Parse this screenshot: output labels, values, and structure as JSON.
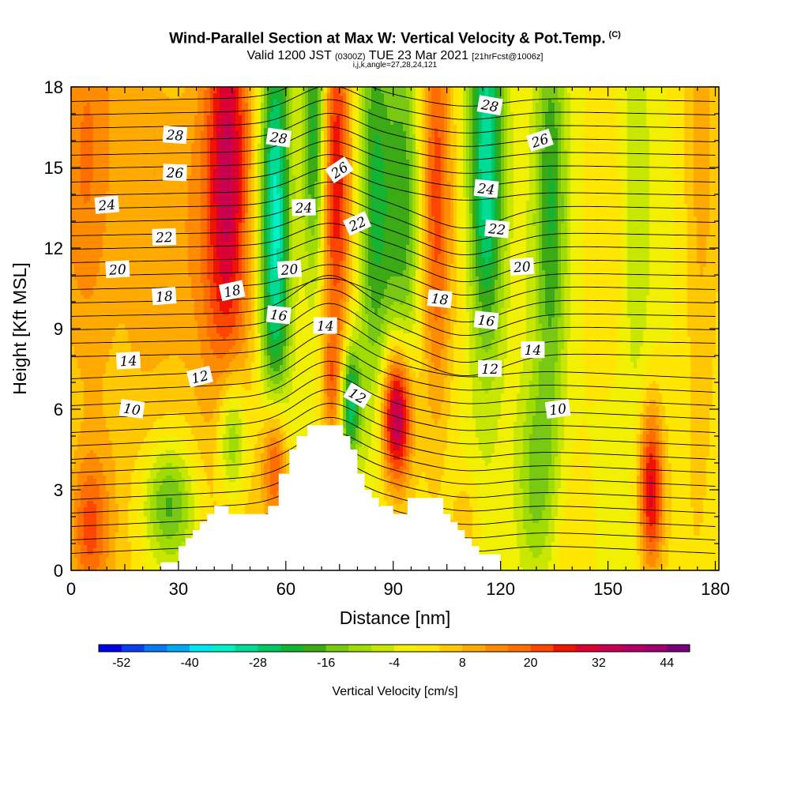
{
  "chart_data": {
    "type": "heatmap",
    "title": "Wind-Parallel Section at Max W: Vertical Velocity & Pot.Temp.",
    "title_tag": "(C)",
    "subtitle_main": "Valid 1200 JST",
    "subtitle_z": "(0300Z)",
    "subtitle_date": "TUE 23 Mar 2021",
    "subtitle_fcst": "[21hrFcst@1006z]",
    "subtitle_ijk": "i,j,k,angle=27,28,24,121",
    "xlabel": "Distance [nm]",
    "ylabel": "Height [Kft MSL]",
    "xlim": [
      0,
      181
    ],
    "ylim": [
      0,
      18
    ],
    "x_ticks": [
      "0",
      "30",
      "60",
      "90",
      "120",
      "150",
      "180"
    ],
    "y_ticks": [
      "0",
      "3",
      "6",
      "9",
      "12",
      "15",
      "18"
    ],
    "x_tick_values": [
      0,
      30,
      60,
      90,
      120,
      150,
      180
    ],
    "y_tick_values": [
      0,
      3,
      6,
      9,
      12,
      15,
      18
    ],
    "colorbar": {
      "label": "Vertical Velocity [cm/s]",
      "tick_labels": [
        "-52",
        "-40",
        "-28",
        "-16",
        "-4",
        "8",
        "20",
        "32",
        "44"
      ],
      "colors": [
        "#0000e6",
        "#0a3cf0",
        "#0a78f0",
        "#00aaf0",
        "#00e6f0",
        "#00f0c8",
        "#00dc96",
        "#00c864",
        "#14b432",
        "#3caa14",
        "#78c814",
        "#a0dc00",
        "#c8e600",
        "#f0f000",
        "#ffe600",
        "#ffc800",
        "#ffaa00",
        "#ff8c00",
        "#ff6e00",
        "#ff4600",
        "#f01400",
        "#dc0032",
        "#c80050",
        "#b40064",
        "#a0006e",
        "#780078"
      ]
    },
    "velocity_field": {
      "units": "cm/s",
      "background": 0,
      "features": [
        {
          "x": 4,
          "y": 15,
          "sx": 6,
          "sy": 6,
          "value": 16
        },
        {
          "x": 20,
          "y": 13,
          "sx": 9,
          "sy": 8,
          "value": 10
        },
        {
          "x": 43,
          "y": 13,
          "sx": 7,
          "sy": 8,
          "value": 16
        },
        {
          "x": 44,
          "y": 15,
          "sx": 4,
          "sy": 5,
          "value": 20
        },
        {
          "x": 57,
          "y": 13,
          "sx": 3,
          "sy": 6,
          "value": -34
        },
        {
          "x": 68,
          "y": 16,
          "sx": 2.5,
          "sy": 4,
          "value": -25
        },
        {
          "x": 74,
          "y": 15,
          "sx": 3,
          "sy": 5,
          "value": 26
        },
        {
          "x": 85,
          "y": 14,
          "sx": 3.5,
          "sy": 6,
          "value": -20
        },
        {
          "x": 93,
          "y": 14,
          "sx": 3,
          "sy": 5,
          "value": -15
        },
        {
          "x": 102,
          "y": 14,
          "sx": 3,
          "sy": 6,
          "value": 22
        },
        {
          "x": 116,
          "y": 15,
          "sx": 3.5,
          "sy": 5,
          "value": -34
        },
        {
          "x": 134,
          "y": 14,
          "sx": 3,
          "sy": 6,
          "value": -18
        },
        {
          "x": 158,
          "y": 13,
          "sx": 3,
          "sy": 5,
          "value": -10
        },
        {
          "x": 176,
          "y": 14,
          "sx": 4,
          "sy": 6,
          "value": 12
        },
        {
          "x": 91,
          "y": 5.8,
          "sx": 3,
          "sy": 1.8,
          "value": 40
        },
        {
          "x": 57,
          "y": 4,
          "sx": 2.5,
          "sy": 1.8,
          "value": 28
        },
        {
          "x": 78,
          "y": 6.3,
          "sx": 2,
          "sy": 1.5,
          "value": -28
        },
        {
          "x": 73,
          "y": 6.8,
          "sx": 2,
          "sy": 1.6,
          "value": 14
        },
        {
          "x": 45,
          "y": 5,
          "sx": 3,
          "sy": 1.8,
          "value": -22
        },
        {
          "x": 27,
          "y": 2.5,
          "sx": 5,
          "sy": 1.5,
          "value": -18
        },
        {
          "x": 5,
          "y": 1.5,
          "sx": 4,
          "sy": 2,
          "value": 18
        },
        {
          "x": 130,
          "y": 3,
          "sx": 4,
          "sy": 3,
          "value": -16
        },
        {
          "x": 162,
          "y": 3,
          "sx": 2.5,
          "sy": 2.2,
          "value": 30
        },
        {
          "x": 140,
          "y": 1,
          "sx": 9,
          "sy": 2,
          "value": 2
        },
        {
          "x": 110,
          "y": 1.5,
          "sx": 3,
          "sy": 1.5,
          "value": 10
        }
      ]
    },
    "theta_contour_labels": [
      {
        "text": "28",
        "x": 29,
        "y": 16.2,
        "angle": 4
      },
      {
        "text": "26",
        "x": 29,
        "y": 14.8,
        "angle": 2
      },
      {
        "text": "24",
        "x": 10,
        "y": 13.6,
        "angle": -5
      },
      {
        "text": "22",
        "x": 26,
        "y": 12.4,
        "angle": -2
      },
      {
        "text": "20",
        "x": 13,
        "y": 11.2,
        "angle": -3
      },
      {
        "text": "18",
        "x": 26,
        "y": 10.2,
        "angle": -4
      },
      {
        "text": "14",
        "x": 16,
        "y": 7.8,
        "angle": -3
      },
      {
        "text": "12",
        "x": 36,
        "y": 7.2,
        "angle": -14
      },
      {
        "text": "10",
        "x": 17,
        "y": 6,
        "angle": 8
      },
      {
        "text": "28",
        "x": 58,
        "y": 16.1,
        "angle": 8
      },
      {
        "text": "18",
        "x": 45,
        "y": 10.4,
        "angle": -12
      },
      {
        "text": "16",
        "x": 58,
        "y": 9.5,
        "angle": 6
      },
      {
        "text": "14",
        "x": 71,
        "y": 9.1,
        "angle": 0
      },
      {
        "text": "20",
        "x": 61,
        "y": 11.2,
        "angle": -4
      },
      {
        "text": "24",
        "x": 65,
        "y": 13.5,
        "angle": -2
      },
      {
        "text": "26",
        "x": 75,
        "y": 14.9,
        "angle": -34
      },
      {
        "text": "22",
        "x": 80,
        "y": 12.9,
        "angle": -24
      },
      {
        "text": "12",
        "x": 80,
        "y": 6.5,
        "angle": 30
      },
      {
        "text": "18",
        "x": 103,
        "y": 10.1,
        "angle": 6
      },
      {
        "text": "16",
        "x": 116,
        "y": 9.3,
        "angle": 6
      },
      {
        "text": "12",
        "x": 117,
        "y": 7.5,
        "angle": 0
      },
      {
        "text": "28",
        "x": 117,
        "y": 17.3,
        "angle": 10
      },
      {
        "text": "26",
        "x": 131,
        "y": 16,
        "angle": -18
      },
      {
        "text": "24",
        "x": 116,
        "y": 14.2,
        "angle": 6
      },
      {
        "text": "22",
        "x": 119,
        "y": 12.7,
        "angle": 6
      },
      {
        "text": "20",
        "x": 126,
        "y": 11.3,
        "angle": -4
      },
      {
        "text": "14",
        "x": 129,
        "y": 8.2,
        "angle": 0
      },
      {
        "text": "10",
        "x": 136,
        "y": 6,
        "angle": -8
      }
    ],
    "terrain": [
      [
        25,
        0.3
      ],
      [
        30,
        0.9
      ],
      [
        32,
        1.2
      ],
      [
        34,
        1.5
      ],
      [
        36,
        1.8
      ],
      [
        38,
        2.1
      ],
      [
        40,
        2.4
      ],
      [
        42,
        2.4
      ],
      [
        44,
        2.1
      ],
      [
        48,
        2.1
      ],
      [
        52,
        2.1
      ],
      [
        55,
        2.4
      ],
      [
        58,
        3.6
      ],
      [
        61,
        4.5
      ],
      [
        63,
        5.0
      ],
      [
        66,
        5.4
      ],
      [
        70,
        5.4
      ],
      [
        74,
        5.4
      ],
      [
        76,
        5.0
      ],
      [
        78,
        4.5
      ],
      [
        80,
        3.6
      ],
      [
        82,
        3.0
      ],
      [
        84,
        2.7
      ],
      [
        86,
        2.4
      ],
      [
        88,
        2.4
      ],
      [
        90,
        2.1
      ],
      [
        92,
        2.1
      ],
      [
        94,
        2.7
      ],
      [
        98,
        2.7
      ],
      [
        102,
        2.7
      ],
      [
        104,
        2.1
      ],
      [
        106,
        1.8
      ],
      [
        108,
        1.5
      ],
      [
        110,
        1.2
      ],
      [
        112,
        0.9
      ],
      [
        114,
        0.6
      ],
      [
        116,
        0.6
      ],
      [
        120,
        0.3
      ]
    ]
  }
}
